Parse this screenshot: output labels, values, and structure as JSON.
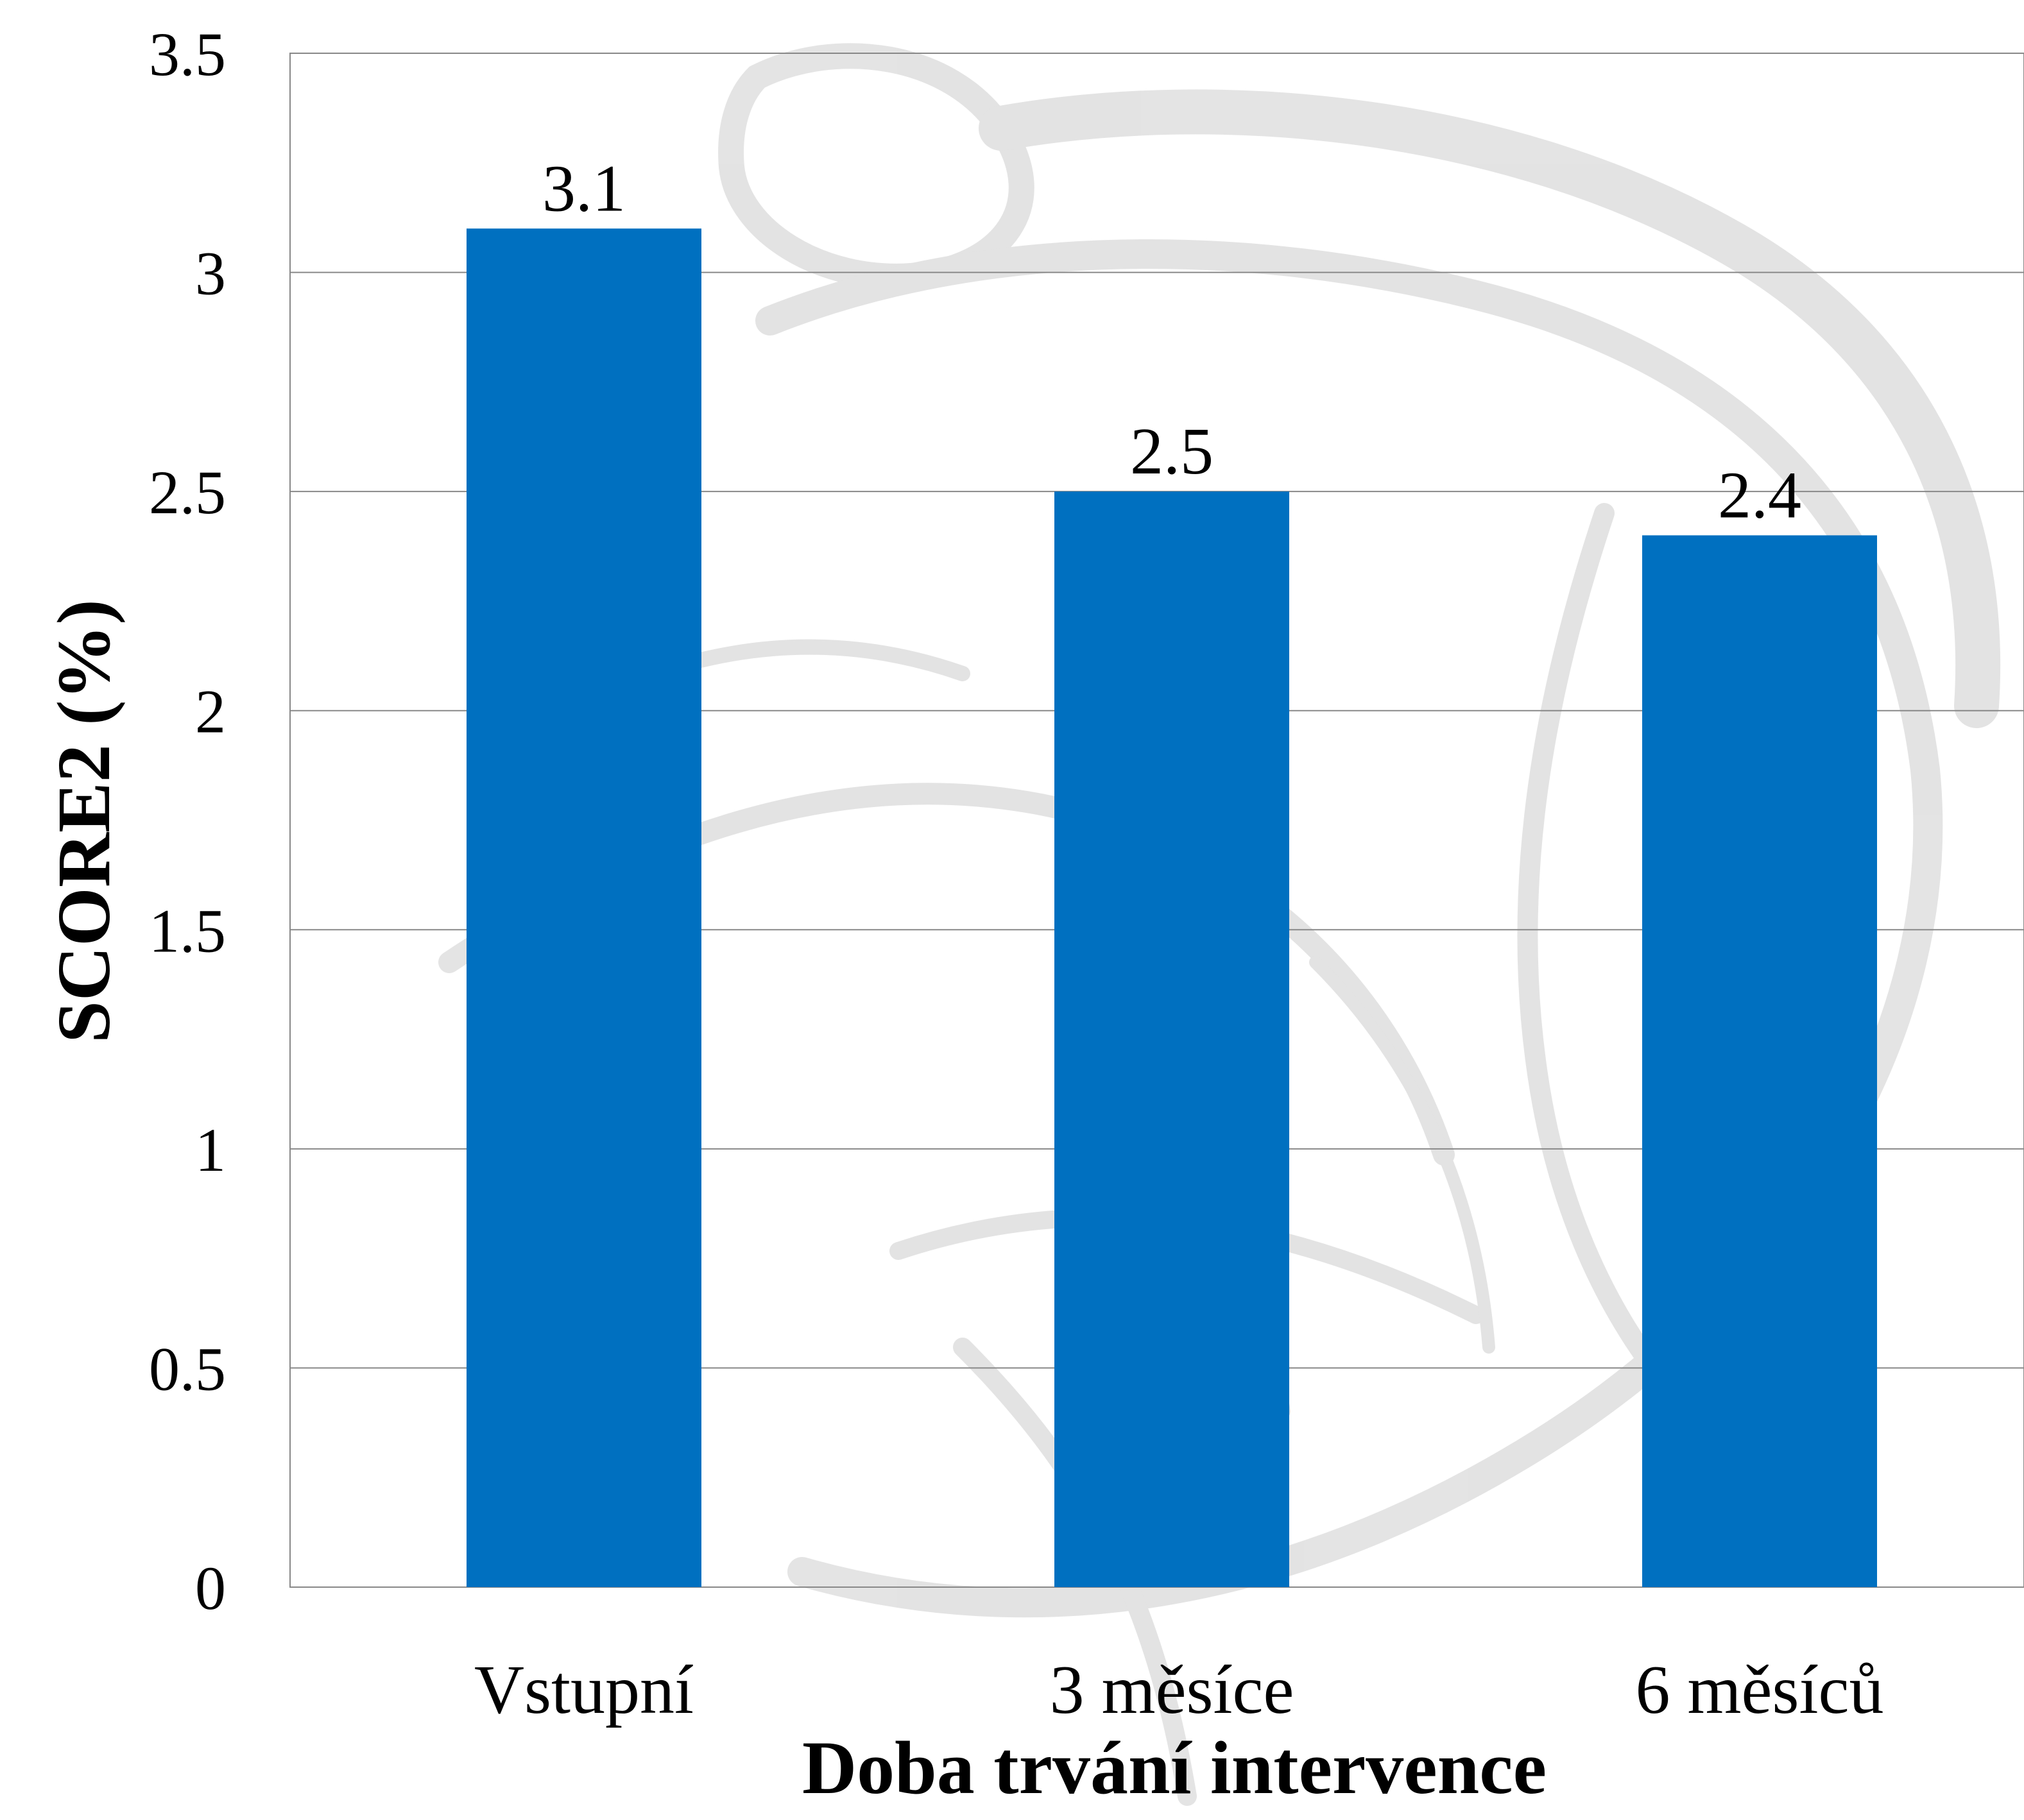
{
  "chart_data": {
    "type": "bar",
    "categories": [
      "Vstupní",
      "3 měsíce",
      "6 měsíců"
    ],
    "values": [
      3.1,
      2.5,
      2.4
    ],
    "data_labels": [
      "3.1",
      "2.5",
      "2.4"
    ],
    "xlabel": "Doba trvání intervence",
    "ylabel": "SCORE2 (%)",
    "ylim": [
      0,
      3.5
    ],
    "yticks": [
      0,
      0.5,
      1,
      1.5,
      2,
      2.5,
      3,
      3.5
    ],
    "ytick_labels": [
      "0",
      "0.5",
      "1",
      "1.5",
      "2",
      "2.5",
      "3",
      "3.5"
    ],
    "grid": true,
    "legend": "none",
    "bar_color": "#0070C0",
    "background": "watermark illustration of a heart in light grey"
  }
}
